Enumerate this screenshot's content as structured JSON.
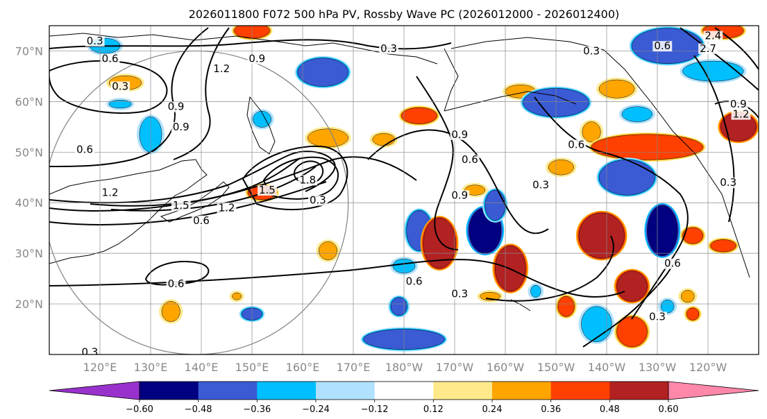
{
  "chart_data": {
    "type": "contour-map",
    "title": "2026011800 F072 500 hPa PV, Rossby Wave PC (2026012000 - 2026012400)",
    "map": {
      "lon_range_east_deg": [
        110,
        250
      ],
      "lat_range": [
        10,
        75
      ],
      "lat_ticks": [
        {
          "lat": 70,
          "label": "70°N"
        },
        {
          "lat": 60,
          "label": "60°N"
        },
        {
          "lat": 50,
          "label": "50°N"
        },
        {
          "lat": 40,
          "label": "40°N"
        },
        {
          "lat": 30,
          "label": "30°N"
        },
        {
          "lat": 20,
          "label": "20°N"
        }
      ],
      "lon_ticks": [
        {
          "lon": 120,
          "label": "120°E"
        },
        {
          "lon": 130,
          "label": "130°E"
        },
        {
          "lon": 140,
          "label": "140°E"
        },
        {
          "lon": 150,
          "label": "150°E"
        },
        {
          "lon": 160,
          "label": "160°E"
        },
        {
          "lon": 170,
          "label": "170°E"
        },
        {
          "lon": 180,
          "label": "180°W"
        },
        {
          "lon": 190,
          "label": "170°W"
        },
        {
          "lon": 200,
          "label": "160°W"
        },
        {
          "lon": 210,
          "label": "150°W"
        },
        {
          "lon": 220,
          "label": "140°W"
        },
        {
          "lon": 230,
          "label": "130°W"
        },
        {
          "lon": 240,
          "label": "120°W"
        }
      ],
      "circle": {
        "center_lon": 139,
        "center_lat": 40,
        "radius_deg": 30
      }
    },
    "contour_labels": [
      {
        "lon": 119,
        "lat": 72,
        "text": "0.3"
      },
      {
        "lon": 122,
        "lat": 68.5,
        "text": "0.6"
      },
      {
        "lon": 124,
        "lat": 63,
        "text": "0.3"
      },
      {
        "lon": 117,
        "lat": 50.5,
        "text": "0.6"
      },
      {
        "lon": 136,
        "lat": 55,
        "text": "0.9"
      },
      {
        "lon": 135,
        "lat": 59,
        "text": "0.9"
      },
      {
        "lon": 151,
        "lat": 68.5,
        "text": "0.9"
      },
      {
        "lon": 144,
        "lat": 66.5,
        "text": "1.2"
      },
      {
        "lon": 122,
        "lat": 42,
        "text": "1.2"
      },
      {
        "lon": 136,
        "lat": 39.5,
        "text": "1.5"
      },
      {
        "lon": 145,
        "lat": 39,
        "text": "1.2"
      },
      {
        "lon": 140,
        "lat": 36.5,
        "text": "0.6"
      },
      {
        "lon": 153,
        "lat": 42.5,
        "text": "1.5"
      },
      {
        "lon": 161,
        "lat": 44.5,
        "text": "1.8"
      },
      {
        "lon": 163,
        "lat": 40.5,
        "text": "0.3"
      },
      {
        "lon": 177,
        "lat": 70.5,
        "text": "0.3"
      },
      {
        "lon": 217,
        "lat": 70,
        "text": "0.3"
      },
      {
        "lon": 231,
        "lat": 71,
        "text": "0.6"
      },
      {
        "lon": 241,
        "lat": 73,
        "text": "2.4"
      },
      {
        "lon": 240,
        "lat": 70.5,
        "text": "2.7"
      },
      {
        "lon": 246,
        "lat": 59.5,
        "text": "0.9"
      },
      {
        "lon": 246.5,
        "lat": 57.5,
        "text": "1.2"
      },
      {
        "lon": 191,
        "lat": 53.5,
        "text": "0.9"
      },
      {
        "lon": 193,
        "lat": 48.5,
        "text": "0.6"
      },
      {
        "lon": 191,
        "lat": 41.5,
        "text": "0.9"
      },
      {
        "lon": 214,
        "lat": 51.5,
        "text": "0.6"
      },
      {
        "lon": 207,
        "lat": 43.5,
        "text": "0.3"
      },
      {
        "lon": 244,
        "lat": 44,
        "text": "0.3"
      },
      {
        "lon": 233,
        "lat": 28,
        "text": "0.6"
      },
      {
        "lon": 182,
        "lat": 24.5,
        "text": "0.6"
      },
      {
        "lon": 191,
        "lat": 22,
        "text": "0.3"
      },
      {
        "lon": 230,
        "lat": 17.5,
        "text": "0.3"
      },
      {
        "lon": 135,
        "lat": 24,
        "text": "0.6"
      },
      {
        "lon": 118,
        "lat": 10.5,
        "text": "0.3"
      }
    ],
    "shaded_anomalies": [
      {
        "lon": 150,
        "lat": 74,
        "rx": 3.5,
        "ry": 1.5,
        "bin": "0.36 to 0.48",
        "color": "#ff4000"
      },
      {
        "lon": 121,
        "lat": 71,
        "rx": 3,
        "ry": 1.5,
        "bin": "-0.36 to -0.24",
        "color": "#00bfff"
      },
      {
        "lon": 125,
        "lat": 63.7,
        "rx": 3.2,
        "ry": 1.4,
        "bin": "0.24 to 0.36",
        "color": "#ffa500"
      },
      {
        "lon": 124,
        "lat": 59.5,
        "rx": 2.2,
        "ry": 0.8,
        "bin": "-0.36 to -0.24",
        "color": "#00bfff"
      },
      {
        "lon": 130,
        "lat": 53.5,
        "rx": 2.2,
        "ry": 3.5,
        "bin": "-0.36 to -0.24",
        "color": "#00bfff"
      },
      {
        "lon": 152,
        "lat": 56.5,
        "rx": 1.8,
        "ry": 1.6,
        "bin": "-0.36 to -0.24",
        "color": "#00bfff"
      },
      {
        "lon": 164,
        "lat": 65.8,
        "rx": 5,
        "ry": 2.8,
        "bin": "-0.48 to -0.36",
        "color": "#3a5bd4"
      },
      {
        "lon": 165,
        "lat": 52.8,
        "rx": 4,
        "ry": 1.8,
        "bin": "0.24 to 0.36",
        "color": "#ffa500"
      },
      {
        "lon": 152,
        "lat": 42,
        "rx": 2.8,
        "ry": 1.4,
        "bin": "0.36 to 0.48",
        "color": "#ff4000"
      },
      {
        "lon": 176,
        "lat": 52.5,
        "rx": 2.2,
        "ry": 1.2,
        "bin": "0.24 to 0.36",
        "color": "#ffa500"
      },
      {
        "lon": 183,
        "lat": 57.2,
        "rx": 3.5,
        "ry": 1.6,
        "bin": "0.36 to 0.48",
        "color": "#ff4000"
      },
      {
        "lon": 203,
        "lat": 62,
        "rx": 3,
        "ry": 1.3,
        "bin": "0.24 to 0.36",
        "color": "#ffa500"
      },
      {
        "lon": 210,
        "lat": 59.8,
        "rx": 6.5,
        "ry": 2.8,
        "bin": "-0.48 to -0.36",
        "color": "#3a5bd4"
      },
      {
        "lon": 222,
        "lat": 62.5,
        "rx": 3.5,
        "ry": 1.8,
        "bin": "0.24 to 0.36",
        "color": "#ffa500"
      },
      {
        "lon": 226,
        "lat": 57.5,
        "rx": 3,
        "ry": 1.5,
        "bin": "-0.36 to -0.24",
        "color": "#00bfff"
      },
      {
        "lon": 217,
        "lat": 54,
        "rx": 1.8,
        "ry": 2,
        "bin": "0.24 to 0.36",
        "color": "#ffa500"
      },
      {
        "lon": 228,
        "lat": 51,
        "rx": 11,
        "ry": 2.5,
        "bin": "0.36 to 0.48",
        "color": "#ff4000"
      },
      {
        "lon": 224,
        "lat": 45,
        "rx": 5.5,
        "ry": 3.5,
        "bin": "-0.48 to -0.36",
        "color": "#3a5bd4"
      },
      {
        "lon": 211,
        "lat": 47,
        "rx": 2.5,
        "ry": 1.5,
        "bin": "0.24 to 0.36",
        "color": "#ffa500"
      },
      {
        "lon": 232,
        "lat": 71,
        "rx": 7,
        "ry": 3.5,
        "bin": "-0.48 to -0.36",
        "color": "#3a5bd4"
      },
      {
        "lon": 241,
        "lat": 66,
        "rx": 6,
        "ry": 2,
        "bin": "-0.36 to -0.24",
        "color": "#00bfff"
      },
      {
        "lon": 246,
        "lat": 55,
        "rx": 3.5,
        "ry": 2.8,
        "bin": "0.48 to 0.60",
        "color": "#b22222"
      },
      {
        "lon": 243,
        "lat": 74,
        "rx": 4,
        "ry": 1.5,
        "bin": "0.36 to 0.48",
        "color": "#ff4000"
      },
      {
        "lon": 183,
        "lat": 34.5,
        "rx": 2.5,
        "ry": 4,
        "bin": "-0.48 to -0.36",
        "color": "#3a5bd4"
      },
      {
        "lon": 165,
        "lat": 30.5,
        "rx": 1.8,
        "ry": 1.8,
        "bin": "0.24 to 0.36",
        "color": "#ffa500"
      },
      {
        "lon": 187,
        "lat": 32,
        "rx": 3.2,
        "ry": 5,
        "bin": "0.48 to 0.60",
        "color": "#b22222"
      },
      {
        "lon": 196,
        "lat": 34.5,
        "rx": 3.2,
        "ry": 4.5,
        "bin": "-0.60 to -0.48",
        "color": "#000080"
      },
      {
        "lon": 198,
        "lat": 39.5,
        "rx": 2,
        "ry": 3,
        "bin": "-0.48 to -0.36",
        "color": "#3a5bd4"
      },
      {
        "lon": 194,
        "lat": 42.5,
        "rx": 2,
        "ry": 1,
        "bin": "0.24 to 0.36",
        "color": "#ffa500"
      },
      {
        "lon": 219,
        "lat": 33.5,
        "rx": 4.5,
        "ry": 4.5,
        "bin": "0.48 to 0.60",
        "color": "#b22222"
      },
      {
        "lon": 231,
        "lat": 34.5,
        "rx": 3,
        "ry": 5,
        "bin": "-0.60 to -0.48",
        "color": "#000080"
      },
      {
        "lon": 237,
        "lat": 33.5,
        "rx": 2,
        "ry": 1.6,
        "bin": "0.36 to 0.48",
        "color": "#ff4000"
      },
      {
        "lon": 201,
        "lat": 27,
        "rx": 3,
        "ry": 4.5,
        "bin": "0.48 to 0.60",
        "color": "#b22222"
      },
      {
        "lon": 197,
        "lat": 21.5,
        "rx": 2,
        "ry": 0.8,
        "bin": "0.24 to 0.36",
        "color": "#ffa500"
      },
      {
        "lon": 206,
        "lat": 22.5,
        "rx": 1,
        "ry": 1.2,
        "bin": "-0.36 to -0.24",
        "color": "#00bfff"
      },
      {
        "lon": 225,
        "lat": 23.5,
        "rx": 3,
        "ry": 3,
        "bin": "0.48 to 0.60",
        "color": "#b22222"
      },
      {
        "lon": 243,
        "lat": 31.5,
        "rx": 2.5,
        "ry": 1.2,
        "bin": "0.36 to 0.48",
        "color": "#ff4000"
      },
      {
        "lon": 212,
        "lat": 19.5,
        "rx": 1.6,
        "ry": 2,
        "bin": "0.36 to 0.48",
        "color": "#ff4000"
      },
      {
        "lon": 218,
        "lat": 16,
        "rx": 3,
        "ry": 3.5,
        "bin": "-0.36 to -0.24",
        "color": "#00bfff"
      },
      {
        "lon": 225,
        "lat": 14.5,
        "rx": 3,
        "ry": 3,
        "bin": "0.36 to 0.48",
        "color": "#ff4000"
      },
      {
        "lon": 232,
        "lat": 19.5,
        "rx": 1.3,
        "ry": 1.3,
        "bin": "-0.36 to -0.24",
        "color": "#00bfff"
      },
      {
        "lon": 236,
        "lat": 21.5,
        "rx": 1.3,
        "ry": 1.2,
        "bin": "0.24 to 0.36",
        "color": "#ffa500"
      },
      {
        "lon": 237,
        "lat": 18,
        "rx": 1.2,
        "ry": 1.2,
        "bin": "0.36 to 0.48",
        "color": "#ff4000"
      },
      {
        "lon": 180,
        "lat": 27.5,
        "rx": 2.2,
        "ry": 1.4,
        "bin": "-0.36 to -0.24",
        "color": "#00bfff"
      },
      {
        "lon": 179,
        "lat": 19.5,
        "rx": 1.6,
        "ry": 1.8,
        "bin": "-0.48 to -0.36",
        "color": "#3a5bd4"
      },
      {
        "lon": 180,
        "lat": 13,
        "rx": 8,
        "ry": 2,
        "bin": "-0.48 to -0.36",
        "color": "#3a5bd4"
      },
      {
        "lon": 150,
        "lat": 18,
        "rx": 2,
        "ry": 1.2,
        "bin": "-0.48 to -0.36",
        "color": "#3a5bd4"
      },
      {
        "lon": 147,
        "lat": 21.5,
        "rx": 0.9,
        "ry": 0.7,
        "bin": "0.24 to 0.36",
        "color": "#ffa500"
      },
      {
        "lon": 134,
        "lat": 18.5,
        "rx": 1.8,
        "ry": 2,
        "bin": "0.24 to 0.36",
        "color": "#ffa500"
      }
    ],
    "colorbar": {
      "extend": "both",
      "below_color": "#9932cc",
      "above_color": "#ff88aa",
      "colors": [
        "#000080",
        "#3a5bd4",
        "#00bfff",
        "#b0e2ff",
        "#ffffff",
        "#ffe98a",
        "#ffa500",
        "#ff4000",
        "#b22222"
      ],
      "tick_values": [
        -0.6,
        -0.48,
        -0.36,
        -0.24,
        -0.12,
        0.12,
        0.24,
        0.36,
        0.48,
        0.6
      ],
      "tick_labels": [
        "−0.60",
        "−0.48",
        "−0.36",
        "−0.24",
        "−0.12",
        "0.12",
        "0.24",
        "0.36",
        "0.48",
        "0.60"
      ]
    }
  }
}
